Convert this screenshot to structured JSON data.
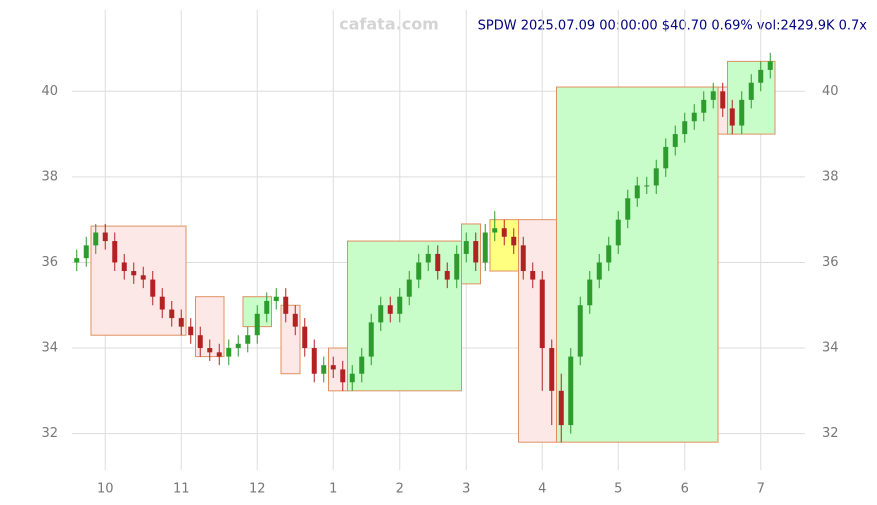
{
  "chart_data": {
    "type": "candlestick",
    "title": "SPDW 2025.07.09 00:00:00 $40.70 0.69% vol:2429.9K 0.7x",
    "watermark": "cafata.com",
    "categories": [
      null,
      null,
      null,
      "10",
      null,
      null,
      null,
      null,
      null,
      null,
      null,
      "11",
      null,
      null,
      null,
      null,
      null,
      null,
      null,
      "12",
      null,
      null,
      null,
      null,
      null,
      null,
      null,
      "1",
      null,
      null,
      null,
      null,
      null,
      null,
      "2",
      null,
      null,
      null,
      null,
      null,
      null,
      "3",
      null,
      null,
      null,
      null,
      null,
      null,
      null,
      "4",
      null,
      null,
      null,
      null,
      null,
      null,
      null,
      "5",
      null,
      null,
      null,
      null,
      null,
      null,
      "6",
      null,
      null,
      null,
      null,
      null,
      null,
      null,
      "7",
      null
    ],
    "open": [
      36.0,
      36.1,
      36.4,
      36.7,
      36.5,
      36.0,
      35.8,
      35.7,
      35.6,
      35.2,
      34.9,
      34.7,
      34.5,
      34.3,
      34.0,
      33.9,
      33.8,
      34.0,
      34.1,
      34.3,
      34.8,
      35.1,
      35.2,
      34.8,
      34.5,
      34.0,
      33.4,
      33.6,
      33.5,
      33.2,
      33.4,
      33.8,
      34.6,
      35.0,
      34.8,
      35.2,
      35.6,
      36.0,
      36.2,
      35.8,
      35.6,
      36.2,
      36.5,
      36.0,
      36.7,
      36.8,
      36.6,
      36.4,
      35.8,
      35.6,
      34.0,
      33.0,
      32.2,
      33.8,
      35.0,
      35.6,
      36.0,
      36.4,
      37.0,
      37.5,
      37.8,
      37.8,
      38.2,
      38.7,
      39.0,
      39.3,
      39.5,
      39.8,
      40.0,
      39.6,
      39.2,
      39.8,
      40.2,
      40.5
    ],
    "high": [
      36.3,
      36.6,
      36.9,
      36.9,
      36.7,
      36.2,
      36.0,
      35.9,
      35.8,
      35.4,
      35.1,
      34.9,
      34.7,
      34.5,
      34.2,
      34.1,
      34.2,
      34.3,
      34.5,
      35.0,
      35.3,
      35.4,
      35.4,
      35.0,
      34.7,
      34.2,
      33.8,
      33.8,
      33.7,
      33.6,
      34.0,
      34.8,
      35.2,
      35.2,
      35.4,
      35.8,
      36.2,
      36.4,
      36.4,
      36.0,
      36.4,
      36.7,
      36.7,
      36.9,
      37.2,
      37.0,
      36.8,
      36.6,
      36.0,
      35.8,
      34.2,
      33.4,
      34.0,
      35.2,
      35.8,
      36.2,
      36.6,
      37.2,
      37.7,
      38.0,
      38.0,
      38.4,
      38.9,
      39.2,
      39.5,
      39.7,
      40.0,
      40.2,
      40.2,
      39.8,
      40.0,
      40.4,
      40.7,
      40.9
    ],
    "low": [
      35.8,
      35.9,
      36.2,
      36.3,
      35.8,
      35.6,
      35.5,
      35.4,
      35.0,
      34.7,
      34.5,
      34.3,
      34.1,
      33.8,
      33.7,
      33.6,
      33.6,
      33.8,
      33.9,
      34.1,
      34.6,
      34.9,
      34.6,
      34.3,
      33.8,
      33.2,
      33.2,
      33.3,
      33.0,
      33.0,
      33.2,
      33.6,
      34.4,
      34.6,
      34.6,
      35.0,
      35.4,
      35.8,
      35.6,
      35.4,
      35.4,
      36.0,
      35.8,
      35.8,
      36.5,
      36.4,
      36.2,
      35.6,
      35.4,
      33.0,
      32.2,
      31.8,
      32.0,
      33.6,
      34.8,
      35.4,
      35.8,
      36.2,
      36.8,
      37.3,
      37.6,
      37.6,
      38.0,
      38.5,
      38.8,
      39.1,
      39.3,
      39.6,
      39.4,
      39.0,
      39.0,
      39.6,
      40.0,
      40.3
    ],
    "close": [
      36.1,
      36.4,
      36.7,
      36.5,
      36.0,
      35.8,
      35.7,
      35.6,
      35.2,
      34.9,
      34.7,
      34.5,
      34.3,
      34.0,
      33.9,
      33.8,
      34.0,
      34.1,
      34.3,
      34.8,
      35.1,
      35.2,
      34.8,
      34.5,
      34.0,
      33.4,
      33.6,
      33.5,
      33.2,
      33.4,
      33.8,
      34.6,
      35.0,
      34.8,
      35.2,
      35.6,
      36.0,
      36.2,
      35.8,
      35.6,
      36.2,
      36.5,
      36.0,
      36.7,
      36.8,
      36.6,
      36.4,
      35.8,
      35.6,
      34.0,
      33.0,
      32.2,
      33.8,
      35.0,
      35.6,
      36.0,
      36.4,
      37.0,
      37.5,
      37.8,
      37.8,
      38.2,
      38.7,
      39.0,
      39.3,
      39.5,
      39.8,
      40.0,
      39.6,
      39.2,
      39.8,
      40.2,
      40.5,
      40.7
    ],
    "up_color": "#2e9b2e",
    "down_color": "#b22222",
    "zones": [
      {
        "from": 2,
        "to": 11,
        "low": 34.3,
        "high": 36.85,
        "color": "#fde8e8"
      },
      {
        "from": 13,
        "to": 15,
        "low": 33.8,
        "high": 35.2,
        "color": "#fde8e8"
      },
      {
        "from": 18,
        "to": 20,
        "low": 34.5,
        "high": 35.2,
        "color": "#c8fcc8"
      },
      {
        "from": 22,
        "to": 23,
        "low": 33.4,
        "high": 35.0,
        "color": "#fde8e8"
      },
      {
        "from": 27,
        "to": 28,
        "low": 33.0,
        "high": 34.0,
        "color": "#fde8e8"
      },
      {
        "from": 29,
        "to": 40,
        "low": 33.0,
        "high": 36.5,
        "color": "#c8fcc8"
      },
      {
        "from": 41,
        "to": 42,
        "low": 35.5,
        "high": 36.9,
        "color": "#c8fcc8"
      },
      {
        "from": 44,
        "to": 46,
        "low": 35.8,
        "high": 37.0,
        "color": "#ffff80"
      },
      {
        "from": 47,
        "to": 50,
        "low": 31.8,
        "high": 37.0,
        "color": "#fde8e8"
      },
      {
        "from": 51,
        "to": 67,
        "low": 31.8,
        "high": 40.1,
        "color": "#c8fcc8"
      },
      {
        "from": 68,
        "to": 69,
        "low": 39.0,
        "high": 40.1,
        "color": "#fde8e8"
      },
      {
        "from": 69,
        "to": 73,
        "low": 39.0,
        "high": 40.7,
        "color": "#c8fcc8"
      }
    ],
    "ylim": [
      31.15,
      41.9
    ],
    "yticks": [
      32,
      34,
      36,
      38,
      40
    ],
    "grid": true
  }
}
